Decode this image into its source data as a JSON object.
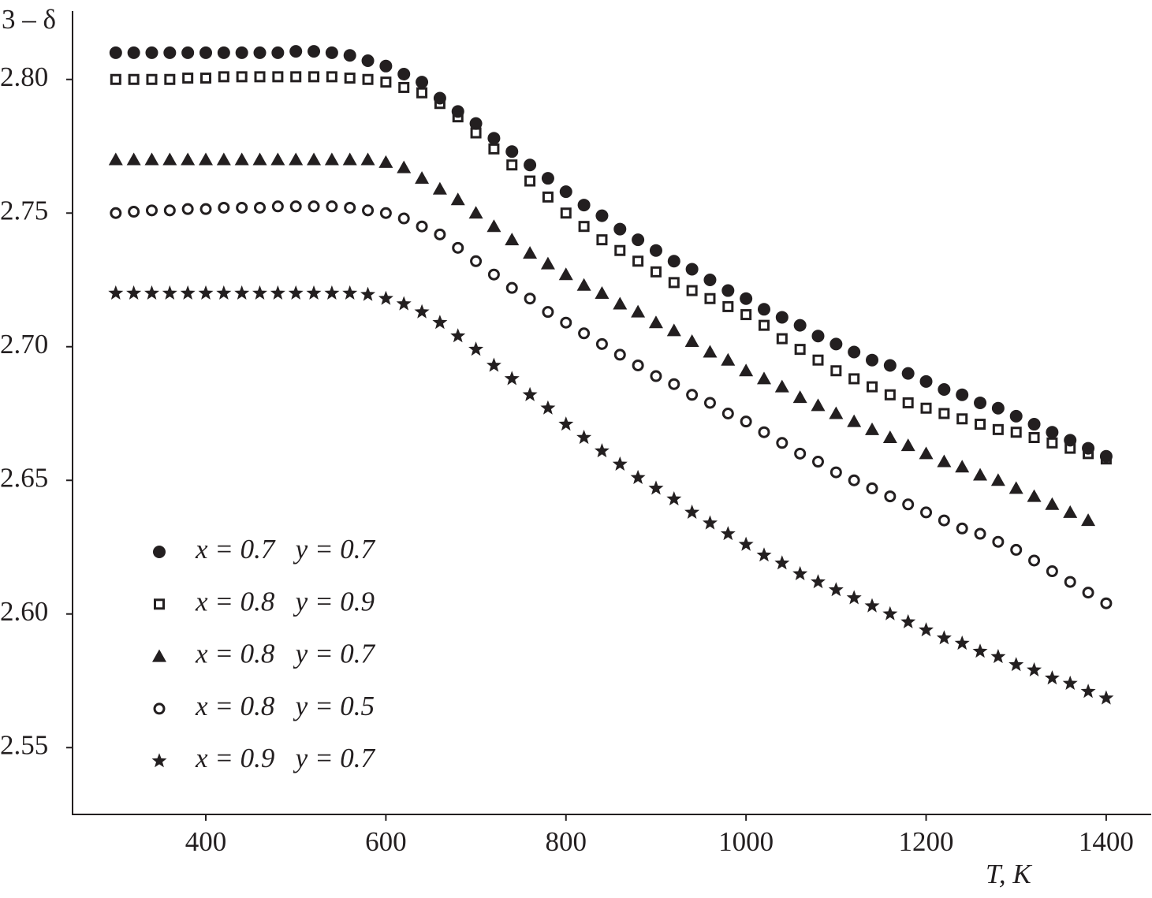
{
  "chart_data": {
    "type": "scatter",
    "y_label": "3 – δ",
    "x_label": "T, K",
    "xlim": [
      252,
      1450
    ],
    "xticks": [
      400,
      600,
      800,
      1000,
      1200,
      1400
    ],
    "ylim": [
      2.525,
      2.825
    ],
    "yticks": [
      {
        "value": 2.8,
        "label": "2.80"
      },
      2.75,
      {
        "value": 2.7,
        "label": "2.70"
      },
      2.65,
      {
        "value": 2.6,
        "label": "2.60"
      },
      2.55
    ],
    "legend": "lower left",
    "x": [
      300,
      320,
      340,
      360,
      380,
      400,
      420,
      440,
      460,
      480,
      500,
      520,
      540,
      560,
      580,
      600,
      620,
      640,
      660,
      680,
      700,
      720,
      740,
      760,
      780,
      800,
      820,
      840,
      860,
      880,
      900,
      920,
      940,
      960,
      980,
      1000,
      1020,
      1040,
      1060,
      1080,
      1100,
      1120,
      1140,
      1160,
      1180,
      1200,
      1220,
      1240,
      1260,
      1280,
      1300,
      1320,
      1340,
      1360,
      1380,
      1400
    ],
    "series": [
      {
        "name": "x = 0.7   y = 0.7",
        "color": "#231f20",
        "marker": "circle",
        "values": [
          2.81,
          2.81,
          2.81,
          2.81,
          2.81,
          2.81,
          2.81,
          2.81,
          2.81,
          2.81,
          2.8105,
          2.8105,
          2.81,
          2.809,
          2.807,
          2.805,
          2.802,
          2.799,
          2.793,
          2.788,
          2.7835,
          2.778,
          2.773,
          2.768,
          2.763,
          2.758,
          2.753,
          2.749,
          2.744,
          2.74,
          2.736,
          2.732,
          2.729,
          2.725,
          2.721,
          2.718,
          2.714,
          2.711,
          2.708,
          2.704,
          2.701,
          2.698,
          2.695,
          2.693,
          2.69,
          2.687,
          2.684,
          2.682,
          2.679,
          2.677,
          2.674,
          2.671,
          2.668,
          2.665,
          2.662,
          2.659
        ]
      },
      {
        "name": "x = 0.8   y = 0.9",
        "color": "#231f20",
        "marker": "square",
        "values": [
          2.8,
          2.8,
          2.8,
          2.8,
          2.8005,
          2.8005,
          2.801,
          2.801,
          2.801,
          2.801,
          2.801,
          2.801,
          2.801,
          2.8005,
          2.8,
          2.799,
          2.797,
          2.795,
          2.791,
          2.786,
          2.78,
          2.774,
          2.768,
          2.762,
          2.756,
          2.75,
          2.745,
          2.74,
          2.736,
          2.732,
          2.728,
          2.724,
          2.721,
          2.718,
          2.715,
          2.712,
          2.708,
          2.703,
          2.699,
          2.695,
          2.691,
          2.688,
          2.685,
          2.682,
          2.679,
          2.677,
          2.675,
          2.673,
          2.671,
          2.669,
          2.668,
          2.666,
          2.664,
          2.662,
          2.66,
          2.658
        ]
      },
      {
        "name": "x = 0.8   y = 0.7",
        "color": "#231f20",
        "marker": "triangle",
        "values": [
          2.77,
          2.77,
          2.77,
          2.77,
          2.77,
          2.77,
          2.77,
          2.77,
          2.77,
          2.77,
          2.77,
          2.77,
          2.77,
          2.77,
          2.77,
          2.769,
          2.767,
          2.763,
          2.759,
          2.755,
          2.75,
          2.745,
          2.74,
          2.735,
          2.731,
          2.727,
          2.723,
          2.72,
          2.716,
          2.713,
          2.709,
          2.706,
          2.702,
          2.698,
          2.695,
          2.691,
          2.688,
          2.685,
          2.681,
          2.678,
          2.675,
          2.672,
          2.669,
          2.666,
          2.663,
          2.66,
          2.657,
          2.655,
          2.652,
          2.65,
          2.647,
          2.644,
          2.641,
          2.638,
          2.635,
          null
        ]
      },
      {
        "name": "x = 0.8   y = 0.5",
        "color": "#231f20",
        "marker": "open-circle",
        "values": [
          2.75,
          2.7505,
          2.751,
          2.751,
          2.7515,
          2.7515,
          2.752,
          2.752,
          2.752,
          2.7525,
          2.7525,
          2.7525,
          2.7525,
          2.752,
          2.751,
          2.75,
          2.748,
          2.745,
          2.742,
          2.737,
          2.732,
          2.727,
          2.722,
          2.718,
          2.713,
          2.709,
          2.705,
          2.701,
          2.697,
          2.693,
          2.689,
          2.686,
          2.682,
          2.679,
          2.675,
          2.672,
          2.668,
          2.664,
          2.66,
          2.657,
          2.653,
          2.65,
          2.647,
          2.644,
          2.641,
          2.638,
          2.635,
          2.632,
          2.63,
          2.627,
          2.624,
          2.62,
          2.616,
          2.612,
          2.608,
          2.604
        ]
      },
      {
        "name": "x = 0.9   y = 0.7",
        "color": "#231f20",
        "marker": "star",
        "values": [
          2.72,
          2.72,
          2.72,
          2.72,
          2.72,
          2.72,
          2.72,
          2.72,
          2.72,
          2.72,
          2.72,
          2.72,
          2.72,
          2.72,
          2.7195,
          2.718,
          2.716,
          2.713,
          2.709,
          2.704,
          2.699,
          2.693,
          2.688,
          2.682,
          2.677,
          2.671,
          2.666,
          2.661,
          2.656,
          2.651,
          2.647,
          2.643,
          2.638,
          2.634,
          2.63,
          2.626,
          2.622,
          2.619,
          2.615,
          2.612,
          2.609,
          2.606,
          2.603,
          2.6,
          2.597,
          2.594,
          2.591,
          2.589,
          2.586,
          2.584,
          2.581,
          2.579,
          2.576,
          2.574,
          2.571,
          2.5685
        ]
      }
    ]
  }
}
